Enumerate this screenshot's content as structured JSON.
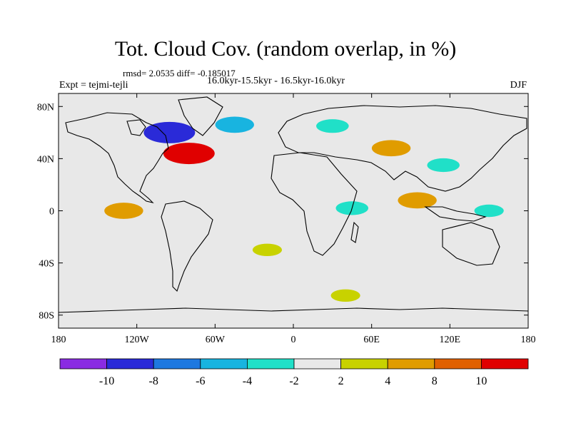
{
  "header": {
    "title": "Tot. Cloud Cov. (random overlap, in %)",
    "stats": "rmsd= 2.0535 diff= -0.185017",
    "expt": "Expt = tejmi-tejli",
    "period": "16.0kyr-15.5kyr - 16.5kyr-16.0kyr",
    "season": "DJF"
  },
  "chart_data": {
    "type": "heatmap",
    "title": "Tot. Cloud Cov. (random overlap, in %)",
    "map_projection": "cylindrical equidistant",
    "xlim": [
      -180,
      180
    ],
    "ylim": [
      -90,
      90
    ],
    "grid": false,
    "x_ticks": [
      {
        "value": -180,
        "label": "180"
      },
      {
        "value": -120,
        "label": "120W"
      },
      {
        "value": -60,
        "label": "60W"
      },
      {
        "value": 0,
        "label": "0"
      },
      {
        "value": 60,
        "label": "60E"
      },
      {
        "value": 120,
        "label": "120E"
      },
      {
        "value": 180,
        "label": "180"
      }
    ],
    "y_ticks": [
      {
        "value": 80,
        "label": "80N"
      },
      {
        "value": 40,
        "label": "40N"
      },
      {
        "value": 0,
        "label": "0"
      },
      {
        "value": -40,
        "label": "40S"
      },
      {
        "value": -80,
        "label": "80S"
      }
    ],
    "colorbar": {
      "position": "bottom",
      "levels": [
        -10,
        -8,
        -6,
        -4,
        -2,
        2,
        4,
        8,
        10
      ],
      "tick_labels": [
        "-10",
        "-8",
        "-6",
        "-4",
        "-2",
        "2",
        "4",
        "8",
        "10"
      ],
      "colors": [
        "#8a2be2",
        "#2a2ad8",
        "#1e78e0",
        "#18b4e0",
        "#20e0c8",
        "#e8e8e8",
        "#c8d200",
        "#e09c00",
        "#e06000",
        "#e00000"
      ]
    },
    "background_color": "#e8e8e8",
    "features": [
      {
        "region": "Central North America (Hudson Bay)",
        "lon": -95,
        "lat": 60,
        "value": -10
      },
      {
        "region": "Great Lakes / Eastern US",
        "lon": -80,
        "lat": 44,
        "value": 10
      },
      {
        "region": "Greenland / North Atlantic",
        "lon": -45,
        "lat": 66,
        "value": -6
      },
      {
        "region": "Western Siberia / Scandinavia",
        "lon": 30,
        "lat": 65,
        "value": -4
      },
      {
        "region": "Central Asia",
        "lon": 75,
        "lat": 48,
        "value": 6
      },
      {
        "region": "Eastern China",
        "lon": 115,
        "lat": 35,
        "value": -4
      },
      {
        "region": "Equatorial East Pacific",
        "lon": -130,
        "lat": 0,
        "value": 6
      },
      {
        "region": "Equatorial East Africa / Indian Ocean",
        "lon": 45,
        "lat": 2,
        "value": -4
      },
      {
        "region": "Southeast Asia / Bay of Bengal",
        "lon": 95,
        "lat": 8,
        "value": 6
      },
      {
        "region": "Western Pacific Warm Pool",
        "lon": 150,
        "lat": 0,
        "value": -3
      },
      {
        "region": "South Atlantic",
        "lon": -20,
        "lat": -30,
        "value": 3
      },
      {
        "region": "Southern Ocean",
        "lon": 40,
        "lat": -65,
        "value": 3
      }
    ]
  }
}
